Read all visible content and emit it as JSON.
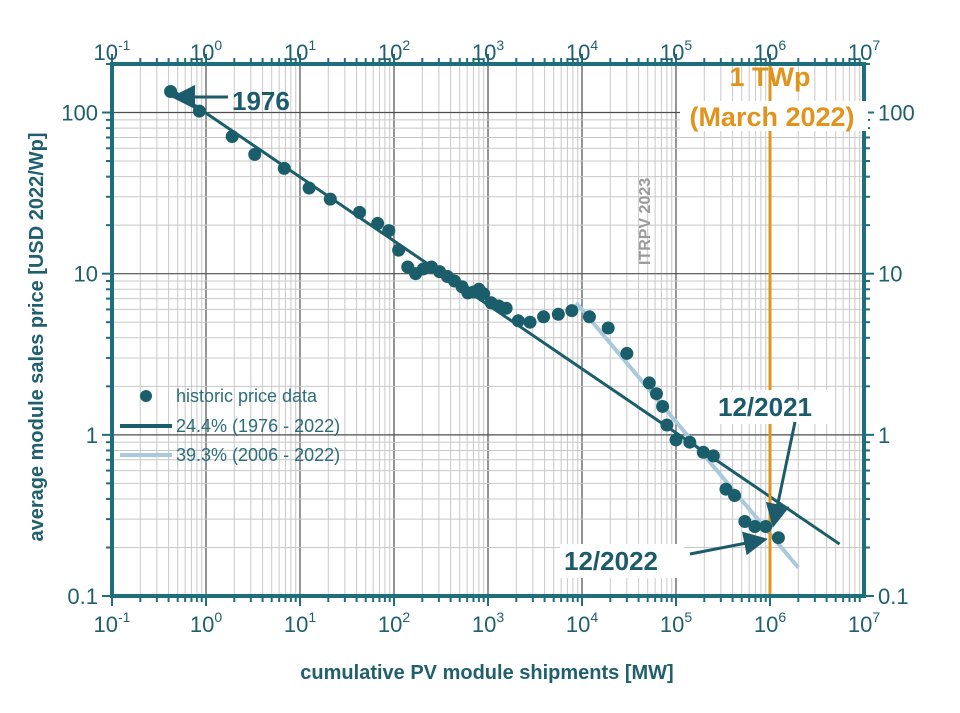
{
  "colors": {
    "frame": "#1f6e7c",
    "grid_major": "#4d4d4d",
    "grid_minor": "#c8c8c8",
    "points": "#1b5e6b",
    "fit_1976": "#1b5e6b",
    "fit_2006": "#a9c9dc",
    "milestone": "#e0941b",
    "annotation_bg": "#ffffff"
  },
  "chart_data": {
    "type": "scatter",
    "x_scale": "log",
    "y_scale": "log",
    "xlim": [
      0.1,
      10000000
    ],
    "ylim": [
      0.1,
      200
    ],
    "grid": true,
    "legend_position": "left-middle",
    "xlabel": "cumulative PV module shipments [MW]",
    "ylabel": "average module sales price [USD 2022/Wp]",
    "x_tick_labels": [
      {
        "value": 0.1,
        "base": "10",
        "exp": "-1"
      },
      {
        "value": 1,
        "base": "10",
        "exp": "0"
      },
      {
        "value": 10,
        "base": "10",
        "exp": "1"
      },
      {
        "value": 100,
        "base": "10",
        "exp": "2"
      },
      {
        "value": 1000,
        "base": "10",
        "exp": "3"
      },
      {
        "value": 10000,
        "base": "10",
        "exp": "4"
      },
      {
        "value": 100000,
        "base": "10",
        "exp": "5"
      },
      {
        "value": 1000000,
        "base": "10",
        "exp": "6"
      },
      {
        "value": 10000000,
        "base": "10",
        "exp": "7"
      }
    ],
    "y_tick_labels": [
      {
        "value": 0.1,
        "label": "0.1"
      },
      {
        "value": 1,
        "label": "1"
      },
      {
        "value": 10,
        "label": "10"
      },
      {
        "value": 100,
        "label": "100"
      }
    ],
    "series": [
      {
        "name": "historic price data",
        "kind": "scatter",
        "points": [
          [
            0.42,
            135
          ],
          [
            0.85,
            102
          ],
          [
            1.9,
            71
          ],
          [
            3.3,
            55
          ],
          [
            6.8,
            45
          ],
          [
            12.5,
            34
          ],
          [
            21,
            29
          ],
          [
            43,
            24
          ],
          [
            67,
            20.5
          ],
          [
            88,
            18.5
          ],
          [
            112,
            14
          ],
          [
            140,
            11
          ],
          [
            170,
            10
          ],
          [
            205,
            10.7
          ],
          [
            250,
            11
          ],
          [
            305,
            10.3
          ],
          [
            370,
            9.6
          ],
          [
            440,
            9
          ],
          [
            530,
            8.3
          ],
          [
            610,
            7.6
          ],
          [
            700,
            7.7
          ],
          [
            800,
            8
          ],
          [
            900,
            7.5
          ],
          [
            1080,
            6.6
          ],
          [
            1300,
            6.3
          ],
          [
            1560,
            6.1
          ],
          [
            2100,
            5.1
          ],
          [
            2800,
            5
          ],
          [
            3900,
            5.4
          ],
          [
            5600,
            5.6
          ],
          [
            7800,
            5.9
          ],
          [
            12000,
            5.4
          ],
          [
            19000,
            4.6
          ],
          [
            30000,
            3.2
          ],
          [
            52000,
            2.1
          ],
          [
            62000,
            1.8
          ],
          [
            72000,
            1.5
          ],
          [
            80000,
            1.15
          ],
          [
            100000,
            0.93
          ],
          [
            140000,
            0.9
          ],
          [
            195000,
            0.78
          ],
          [
            250000,
            0.74
          ],
          [
            340000,
            0.46
          ],
          [
            420000,
            0.42
          ],
          [
            540000,
            0.29
          ],
          [
            690000,
            0.27
          ],
          [
            900000,
            0.27
          ],
          [
            1230000,
            0.23
          ]
        ]
      },
      {
        "name": "24.4% (1976 - 2022)",
        "kind": "line",
        "points": [
          [
            0.42,
            140
          ],
          [
            5500000,
            0.21
          ]
        ]
      },
      {
        "name": "39.3% (2006 - 2022)",
        "kind": "line",
        "points": [
          [
            8700,
            6.6
          ],
          [
            2000000,
            0.15
          ]
        ]
      }
    ],
    "milestone": {
      "x": 1000000,
      "label_line1": "1 TWp",
      "label_line2": "(March 2022)"
    },
    "annotations": [
      {
        "text": "1976",
        "point": [
          0.42,
          135
        ]
      },
      {
        "text": "12/2021",
        "point": [
          900000,
          0.27
        ]
      },
      {
        "text": "12/2022",
        "point": [
          1000000,
          0.23
        ]
      }
    ],
    "watermark": "ITRPV 2023"
  }
}
